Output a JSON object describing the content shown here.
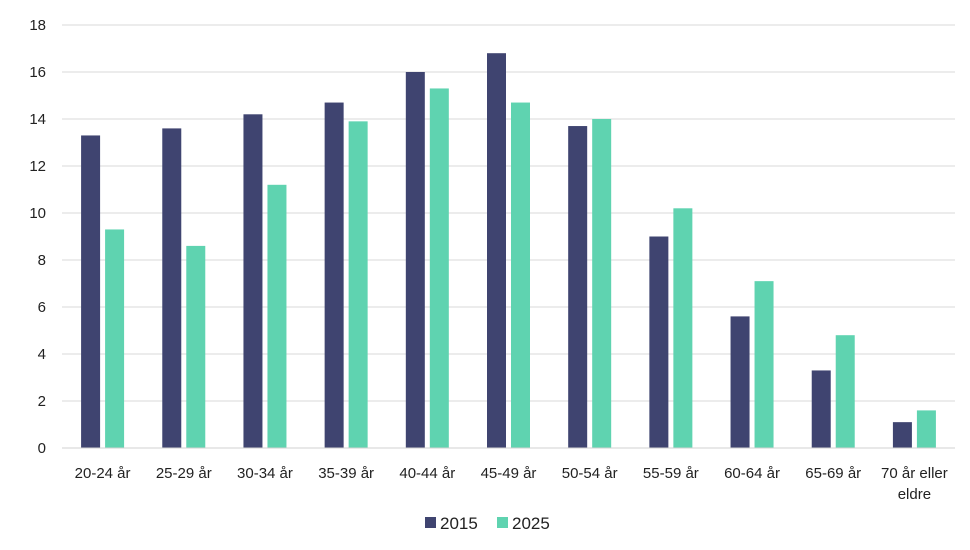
{
  "chart_data": {
    "type": "bar",
    "categories": [
      "20-24 år",
      "25-29 år",
      "30-34 år",
      "35-39 år",
      "40-44 år",
      "45-49 år",
      "50-54 år",
      "55-59 år",
      "60-64 år",
      "65-69 år",
      "70 år eller eldre"
    ],
    "series": [
      {
        "name": "2015",
        "color": "#3f4470",
        "values": [
          13.3,
          13.6,
          14.2,
          14.7,
          16.0,
          16.8,
          13.7,
          9.0,
          5.6,
          3.3,
          1.1
        ]
      },
      {
        "name": "2025",
        "color": "#5fd3b0",
        "values": [
          9.3,
          8.6,
          11.2,
          13.9,
          15.3,
          14.7,
          14.0,
          10.2,
          7.1,
          4.8,
          1.6
        ]
      }
    ],
    "title": "",
    "xlabel": "",
    "ylabel": "",
    "ylim": [
      0,
      18
    ],
    "yticks": [
      0,
      2,
      4,
      6,
      8,
      10,
      12,
      14,
      16,
      18
    ],
    "grid": true,
    "legend": "bottom-center"
  }
}
